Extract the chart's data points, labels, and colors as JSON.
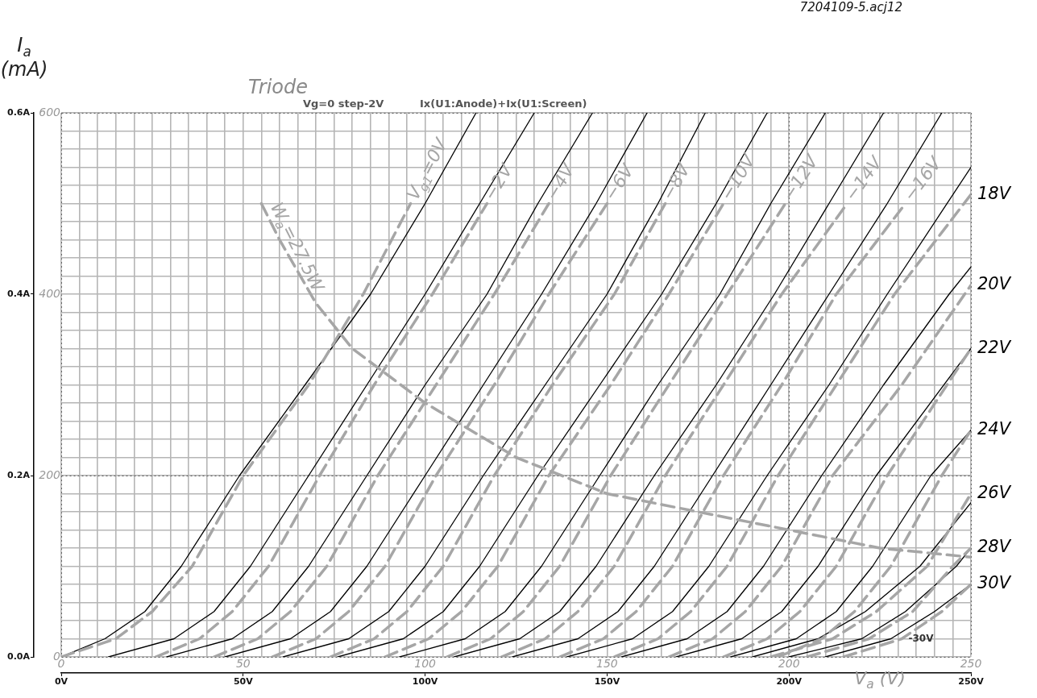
{
  "chart_data": {
    "type": "line",
    "title": "Triode",
    "xlabel": "V$_{a}$ (V)",
    "ylabel": "I$_{a}$ (mA)",
    "annotations": [
      "Vg=0 step-2V",
      "Ix(U1:Anode)+Ix(U1:Screen)",
      "7204109-5.acj12",
      "-30V"
    ],
    "xlim": [
      0,
      250
    ],
    "xticks": [
      {
        "value": 0,
        "label": "0V"
      },
      {
        "value": 50,
        "label": "50V"
      },
      {
        "value": 100,
        "label": "100V"
      },
      {
        "value": 150,
        "label": "150V"
      },
      {
        "value": 200,
        "label": "200V"
      },
      {
        "value": 250,
        "label": "250V"
      }
    ],
    "x2lim": [
      0,
      250
    ],
    "x2ticks": [
      0,
      {
        "value": 5,
        "label": null
      },
      {
        "value": 10,
        "label": null
      },
      {
        "value": 15,
        "label": null
      },
      {
        "value": 20,
        "label": null
      },
      {
        "value": 25,
        "label": null
      },
      {
        "value": 30,
        "label": null
      },
      {
        "value": 35,
        "label": null
      },
      {
        "value": 40,
        "label": null
      },
      {
        "value": 45,
        "label": null
      },
      50,
      {
        "value": 55,
        "label": null
      },
      {
        "value": 60,
        "label": null
      },
      {
        "value": 65,
        "label": null
      },
      {
        "value": 70,
        "label": null
      },
      {
        "value": 75,
        "label": null
      },
      {
        "value": 80,
        "label": null
      },
      {
        "value": 85,
        "label": null
      },
      {
        "value": 90,
        "label": null
      },
      {
        "value": 95,
        "label": null
      },
      100,
      {
        "value": 105,
        "label": null
      },
      {
        "value": 110,
        "label": null
      },
      {
        "value": 115,
        "label": null
      },
      {
        "value": 120,
        "label": null
      },
      {
        "value": 125,
        "label": null
      },
      {
        "value": 130,
        "label": null
      },
      {
        "value": 135,
        "label": null
      },
      {
        "value": 140,
        "label": null
      },
      {
        "value": 145,
        "label": null
      },
      150,
      {
        "value": 155,
        "label": null
      },
      {
        "value": 160,
        "label": null
      },
      {
        "value": 165,
        "label": null
      },
      {
        "value": 170,
        "label": null
      },
      {
        "value": 175,
        "label": null
      },
      {
        "value": 180,
        "label": null
      },
      {
        "value": 185,
        "label": null
      },
      {
        "value": 190,
        "label": null
      },
      {
        "value": 195,
        "label": null
      },
      200,
      {
        "value": 205,
        "label": null
      },
      {
        "value": 210,
        "label": null
      },
      {
        "value": 215,
        "label": null
      },
      {
        "value": 220,
        "label": null
      },
      {
        "value": 225,
        "label": null
      },
      {
        "value": 230,
        "label": null
      },
      {
        "value": 235,
        "label": null
      },
      {
        "value": 240,
        "label": null
      },
      {
        "value": 245,
        "label": null
      },
      250
    ],
    "ylim": [
      0,
      0.6
    ],
    "yticks": [
      {
        "value": 0,
        "label": "0.0A"
      },
      {
        "value": 0.2,
        "label": "0.2A"
      },
      {
        "value": 0.4,
        "label": "0.4A"
      },
      {
        "value": 0.6,
        "label": "0.6A"
      }
    ],
    "y2lim": [
      0,
      600
    ],
    "y2ticks": [
      0,
      {
        "value": 20,
        "label": null
      },
      {
        "value": 40,
        "label": null
      },
      {
        "value": 60,
        "label": null
      },
      {
        "value": 80,
        "label": null
      },
      {
        "value": 100,
        "label": null
      },
      {
        "value": 120,
        "label": null
      },
      {
        "value": 140,
        "label": null
      },
      {
        "value": 160,
        "label": null
      },
      {
        "value": 180,
        "label": null
      },
      200,
      {
        "value": 220,
        "label": null
      },
      {
        "value": 240,
        "label": null
      },
      {
        "value": 260,
        "label": null
      },
      {
        "value": 280,
        "label": null
      },
      {
        "value": 300,
        "label": null
      },
      {
        "value": 320,
        "label": null
      },
      {
        "value": 340,
        "label": null
      },
      {
        "value": 360,
        "label": null
      },
      {
        "value": 380,
        "label": null
      },
      400,
      {
        "value": 420,
        "label": null
      },
      {
        "value": 440,
        "label": null
      },
      {
        "value": 460,
        "label": null
      },
      {
        "value": 480,
        "label": null
      },
      {
        "value": 500,
        "label": null
      },
      {
        "value": 520,
        "label": null
      },
      {
        "value": 540,
        "label": null
      },
      {
        "value": 560,
        "label": null
      },
      {
        "value": 580,
        "label": null
      },
      600
    ],
    "grid": true,
    "legend": false,
    "marker": "none",
    "line_style": "solid",
    "series": [
      {
        "name": "V$_{g1}$=0V",
        "color": "#a6a6a6",
        "line_style": "dashed",
        "x": [
          0,
          15,
          25,
          36,
          50,
          68,
          83,
          96
        ],
        "values": [
          0,
          0.02,
          0.05,
          0.1,
          0.2,
          0.3,
          0.4,
          0.5
        ]
      },
      {
        "name": "−2V",
        "color": "#a6a6a6",
        "line_style": "dashed",
        "x": [
          26,
          38,
          47,
          57,
          71,
          86,
          102,
          117
        ],
        "values": [
          0,
          0.02,
          0.05,
          0.1,
          0.2,
          0.3,
          0.4,
          0.5
        ]
      },
      {
        "name": "−4V",
        "color": "#a6a6a6",
        "line_style": "dashed",
        "x": [
          42,
          54,
          63,
          73,
          87,
          103,
          119,
          134
        ],
        "values": [
          0,
          0.02,
          0.05,
          0.1,
          0.2,
          0.3,
          0.4,
          0.5
        ]
      },
      {
        "name": "−6V",
        "color": "#a6a6a6",
        "line_style": "dashed",
        "x": [
          58,
          70,
          79,
          89,
          103,
          119,
          134,
          150
        ],
        "values": [
          0,
          0.02,
          0.05,
          0.1,
          0.2,
          0.3,
          0.4,
          0.5
        ]
      },
      {
        "name": "−8V",
        "color": "#a6a6a6",
        "line_style": "dashed",
        "x": [
          74,
          86,
          95,
          105,
          119,
          135,
          152,
          166
        ],
        "values": [
          0,
          0.02,
          0.05,
          0.1,
          0.2,
          0.3,
          0.4,
          0.5
        ]
      },
      {
        "name": "−10V",
        "color": "#a6a6a6",
        "line_style": "dashed",
        "x": [
          89,
          101,
          110,
          120,
          134,
          151,
          167,
          182
        ],
        "values": [
          0,
          0.02,
          0.05,
          0.1,
          0.2,
          0.3,
          0.4,
          0.5
        ]
      },
      {
        "name": "−12V",
        "color": "#a6a6a6",
        "line_style": "dashed",
        "x": [
          106,
          118,
          127,
          137,
          151,
          167,
          183,
          199
        ],
        "values": [
          0,
          0.02,
          0.05,
          0.1,
          0.2,
          0.3,
          0.4,
          0.5
        ]
      },
      {
        "name": "−14V",
        "color": "#a6a6a6",
        "line_style": "dashed",
        "x": [
          121,
          133,
          142,
          152,
          166,
          182,
          198,
          216
        ],
        "values": [
          0,
          0.02,
          0.05,
          0.1,
          0.2,
          0.3,
          0.4,
          0.5
        ]
      },
      {
        "name": "−16V",
        "color": "#a6a6a6",
        "line_style": "dashed",
        "x": [
          137,
          149,
          158,
          168,
          182,
          198,
          213,
          232
        ],
        "values": [
          0,
          0.02,
          0.05,
          0.1,
          0.2,
          0.3,
          0.4,
          0.5
        ]
      },
      {
        "name": "18V",
        "color": "#a6a6a6",
        "line_style": "dashed",
        "x": [
          152,
          164,
          173,
          183,
          197,
          213,
          229,
          250
        ],
        "values": [
          0,
          0.02,
          0.05,
          0.1,
          0.2,
          0.3,
          0.4,
          0.51
        ]
      },
      {
        "name": "20V",
        "color": "#a6a6a6",
        "line_style": "dashed",
        "x": [
          167,
          179,
          188,
          198,
          212,
          231,
          250
        ],
        "values": [
          0,
          0.02,
          0.05,
          0.1,
          0.2,
          0.3,
          0.41
        ]
      },
      {
        "name": "22V",
        "color": "#a6a6a6",
        "line_style": "dashed",
        "x": [
          182,
          194,
          203,
          213,
          227,
          250
        ],
        "values": [
          0,
          0.02,
          0.05,
          0.1,
          0.2,
          0.34
        ]
      },
      {
        "name": "24V",
        "color": "#a6a6a6",
        "line_style": "dashed",
        "x": [
          197,
          209,
          218,
          228,
          242,
          250
        ],
        "values": [
          0,
          0.02,
          0.05,
          0.1,
          0.2,
          0.25
        ]
      },
      {
        "name": "26V",
        "color": "#a6a6a6",
        "line_style": "dashed",
        "x": [
          195,
          212,
          224,
          238,
          250
        ],
        "values": [
          0,
          0.02,
          0.05,
          0.1,
          0.18
        ]
      },
      {
        "name": "28V",
        "color": "#a6a6a6",
        "line_style": "dashed",
        "x": [
          205,
          222,
          234,
          245,
          250
        ],
        "values": [
          0,
          0.02,
          0.05,
          0.1,
          0.12
        ]
      },
      {
        "name": "30V",
        "color": "#a6a6a6",
        "line_style": "dashed",
        "x": [
          215,
          231,
          242,
          250
        ],
        "values": [
          0,
          0.02,
          0.05,
          0.08
        ]
      },
      {
        "name": "W$_{a}$=27.5W",
        "color": "#a6a6a6",
        "line_style": "dashed",
        "x": [
          55,
          60,
          70,
          80,
          90,
          100,
          125,
          150,
          175,
          200,
          225,
          250
        ],
        "values": [
          0.5,
          0.46,
          0.39,
          0.34,
          0.31,
          0.28,
          0.22,
          0.18,
          0.16,
          0.14,
          0.12,
          0.11
        ]
      },
      {
        "color": "#000000",
        "x": [
          0,
          12,
          23,
          33,
          49,
          67,
          85,
          100,
          114
        ],
        "values": [
          0,
          0.02,
          0.05,
          0.1,
          0.2,
          0.3,
          0.4,
          0.5,
          0.6
        ]
      },
      {
        "color": "#000000",
        "x": [
          13,
          31,
          42,
          52,
          68,
          84,
          100,
          115,
          130
        ],
        "values": [
          0,
          0.02,
          0.05,
          0.1,
          0.2,
          0.3,
          0.4,
          0.5,
          0.6
        ]
      },
      {
        "color": "#000000",
        "x": [
          29,
          47,
          58,
          68,
          84,
          100,
          117,
          131,
          146
        ],
        "values": [
          0,
          0.02,
          0.05,
          0.1,
          0.2,
          0.3,
          0.4,
          0.5,
          0.6
        ]
      },
      {
        "color": "#000000",
        "x": [
          45,
          63,
          74,
          84,
          100,
          116,
          132,
          147,
          161
        ],
        "values": [
          0,
          0.02,
          0.05,
          0.1,
          0.2,
          0.3,
          0.4,
          0.5,
          0.6
        ]
      },
      {
        "color": "#000000",
        "x": [
          61,
          79,
          90,
          100,
          116,
          133,
          150,
          164,
          177
        ],
        "values": [
          0,
          0.02,
          0.05,
          0.1,
          0.2,
          0.3,
          0.4,
          0.5,
          0.6
        ]
      },
      {
        "color": "#000000",
        "x": [
          76,
          94,
          105,
          115,
          131,
          148,
          165,
          180,
          194
        ],
        "values": [
          0,
          0.02,
          0.05,
          0.1,
          0.2,
          0.3,
          0.4,
          0.5,
          0.6
        ]
      },
      {
        "color": "#000000",
        "x": [
          93,
          111,
          122,
          132,
          148,
          164,
          181,
          195,
          210
        ],
        "values": [
          0,
          0.02,
          0.05,
          0.1,
          0.2,
          0.3,
          0.4,
          0.5,
          0.6
        ]
      },
      {
        "color": "#000000",
        "x": [
          108,
          126,
          137,
          147,
          163,
          180,
          196,
          211,
          226
        ],
        "values": [
          0,
          0.02,
          0.05,
          0.1,
          0.2,
          0.3,
          0.4,
          0.5,
          0.6
        ]
      },
      {
        "color": "#000000",
        "x": [
          124,
          142,
          153,
          163,
          179,
          195,
          211,
          227,
          242
        ],
        "values": [
          0,
          0.02,
          0.05,
          0.1,
          0.2,
          0.3,
          0.4,
          0.5,
          0.6
        ]
      },
      {
        "color": "#000000",
        "x": [
          139,
          157,
          168,
          178,
          194,
          211,
          227,
          250
        ],
        "values": [
          0,
          0.02,
          0.05,
          0.1,
          0.2,
          0.3,
          0.4,
          0.54
        ]
      },
      {
        "color": "#000000",
        "x": [
          154,
          172,
          183,
          193,
          209,
          226,
          244,
          250
        ],
        "values": [
          0,
          0.02,
          0.05,
          0.1,
          0.2,
          0.3,
          0.4,
          0.43
        ]
      },
      {
        "color": "#000000",
        "x": [
          169,
          187,
          198,
          208,
          224,
          250
        ],
        "values": [
          0,
          0.02,
          0.05,
          0.1,
          0.2,
          0.34
        ]
      },
      {
        "color": "#000000",
        "x": [
          184,
          202,
          213,
          223,
          239,
          250
        ],
        "values": [
          0,
          0.02,
          0.05,
          0.1,
          0.2,
          0.25
        ]
      },
      {
        "color": "#000000",
        "x": [
          190,
          208,
          221,
          236,
          250
        ],
        "values": [
          0,
          0.02,
          0.05,
          0.1,
          0.17
        ]
      },
      {
        "color": "#000000",
        "x": [
          200,
          220,
          232,
          246,
          250
        ],
        "values": [
          0,
          0.02,
          0.05,
          0.1,
          0.12
        ]
      },
      {
        "color": "#000000",
        "x": [
          210,
          228,
          240,
          250
        ],
        "values": [
          0,
          0.02,
          0.05,
          0.08
        ]
      }
    ]
  }
}
